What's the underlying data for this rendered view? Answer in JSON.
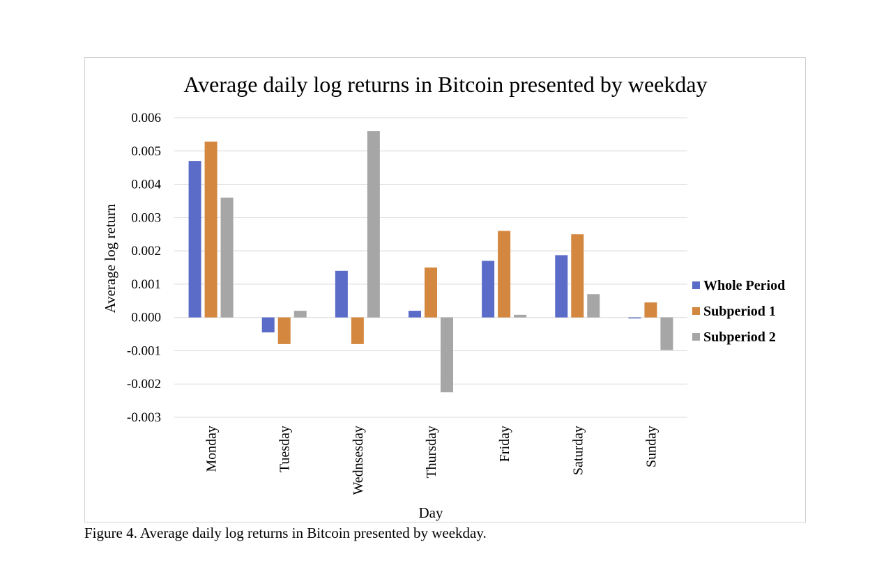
{
  "chart_data": {
    "type": "bar",
    "title": "Average daily log returns in Bitcoin presented by weekday",
    "xlabel": "Day",
    "ylabel": "Average log return",
    "ylim": [
      -0.003,
      0.006
    ],
    "yticks": [
      0.006,
      0.005,
      0.004,
      0.003,
      0.002,
      0.001,
      0.0,
      -0.001,
      -0.002,
      -0.003
    ],
    "ytick_labels": [
      "0.006",
      "0.005",
      "0.004",
      "0.003",
      "0.002",
      "0.001",
      "0.000",
      "-0.001",
      "-0.002",
      "-0.003"
    ],
    "categories": [
      "Monday",
      "Tuesday",
      "Wednsesday",
      "Thursday",
      "Friday",
      "Saturday",
      "Sunday"
    ],
    "series": [
      {
        "name": "Whole Period",
        "color": "#5B6BC8",
        "values": [
          0.0047,
          -0.00045,
          0.0014,
          0.0002,
          0.0017,
          0.00187,
          -3e-05
        ]
      },
      {
        "name": "Subperiod 1",
        "color": "#D4873F",
        "values": [
          0.00528,
          -0.0008,
          -0.0008,
          0.0015,
          0.0026,
          0.0025,
          0.00045
        ]
      },
      {
        "name": "Subperiod 2",
        "color": "#A6A6A6",
        "values": [
          0.0036,
          0.0002,
          0.0056,
          -0.00225,
          8e-05,
          0.0007,
          -0.00098
        ]
      }
    ],
    "grid": true,
    "legend_position": "right"
  },
  "caption": "Figure 4. Average daily log returns in Bitcoin presented by weekday."
}
